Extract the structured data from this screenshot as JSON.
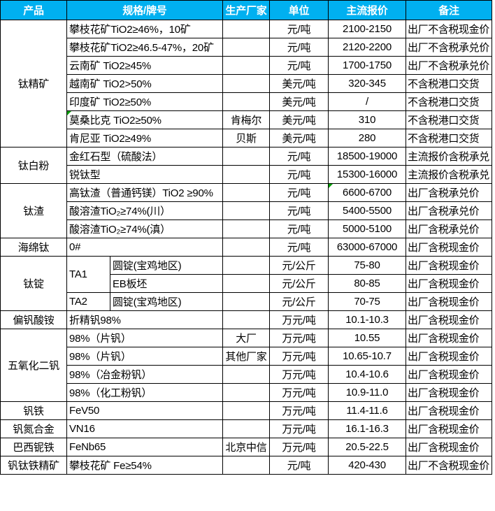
{
  "table": {
    "header": {
      "product": "产品",
      "spec": "规格/牌号",
      "maker": "生产厂家",
      "unit": "单位",
      "price": "主流报价",
      "note": "备注"
    },
    "header_bg": "#00B0F0",
    "header_fg": "#FFFFFF",
    "marker_color": "#00A000",
    "products": [
      {
        "name": "钛精矿",
        "rows": [
          {
            "spec": "攀枝花矿TiO2≥46%，10矿",
            "maker": "",
            "unit": "元/吨",
            "price": "2100-2150",
            "note": "出厂不含税现金价"
          },
          {
            "spec": "攀枝花矿TiO2≥46.5-47%，20矿",
            "maker": "",
            "unit": "元/吨",
            "price": "2120-2200",
            "note": "出厂不含税承兑价"
          },
          {
            "spec": "云南矿 TiO2≥45%",
            "maker": "",
            "unit": "元/吨",
            "price": "1700-1750",
            "note": "出厂不含税承兑价"
          },
          {
            "spec": "越南矿 TiO2>50%",
            "maker": "",
            "unit": "美元/吨",
            "price": "320-345",
            "note": "不含税港口交货"
          },
          {
            "spec": "印度矿 TiO2≥50%",
            "maker": "",
            "unit": "美元/吨",
            "price": "/",
            "note": "不含税港口交货"
          },
          {
            "spec": "莫桑比克 TiO2≥50%",
            "maker": "肯梅尔",
            "unit": "美元/吨",
            "price": "310",
            "note": "不含税港口交货",
            "marker": "spec"
          },
          {
            "spec": "肯尼亚 TiO2≥49%",
            "maker": "贝斯",
            "unit": "美元/吨",
            "price": "280",
            "note": "不含税港口交货"
          }
        ]
      },
      {
        "name": "钛白粉",
        "rows": [
          {
            "spec": "金红石型（硫酸法）",
            "maker": "",
            "unit": "元/吨",
            "price": "18500-19000",
            "note": "主流报价含税承兑"
          },
          {
            "spec": "锐钛型",
            "maker": "",
            "unit": "元/吨",
            "price": "15300-16000",
            "note": "主流报价含税承兑"
          }
        ]
      },
      {
        "name": "钛渣",
        "rows": [
          {
            "spec": "高钛渣（普通钙镁）TiO2 ≥90%",
            "maker": "",
            "unit": "元/吨",
            "price": "6600-6700",
            "note": "出厂含税承兑价",
            "marker": "price"
          },
          {
            "spec": "酸溶渣TiO₂≥74%(川）",
            "maker": "",
            "unit": "元/吨",
            "price": "5400-5500",
            "note": "出厂含税承兑价"
          },
          {
            "spec": "酸溶渣TiO₂≥74%(滇）",
            "maker": "",
            "unit": "元/吨",
            "price": "5000-5100",
            "note": "出厂含税承兑价"
          }
        ]
      },
      {
        "name": "海绵钛",
        "rows": [
          {
            "spec": "0#",
            "maker": "",
            "unit": "元/吨",
            "price": "63000-67000",
            "note": "出厂含税现金价"
          }
        ]
      },
      {
        "name": "钛锭",
        "rows": [
          {
            "grade": "TA1",
            "grade_rowspan": 2,
            "spec": "圆锭(宝鸡地区)",
            "maker": "",
            "unit": "元/公斤",
            "price": "75-80",
            "note": "出厂含税现金价"
          },
          {
            "spec": "EB板坯",
            "maker": "",
            "unit": "元/公斤",
            "price": "80-85",
            "note": "出厂含税现金价"
          },
          {
            "grade": "TA2",
            "grade_rowspan": 1,
            "spec": "圆锭(宝鸡地区)",
            "maker": "",
            "unit": "元/公斤",
            "price": "70-75",
            "note": "出厂含税现金价"
          }
        ]
      },
      {
        "name": "偏钒酸铵",
        "rows": [
          {
            "spec": "折精钒98%",
            "maker": "",
            "unit": "万元/吨",
            "price": "10.1-10.3",
            "note": "出厂含税现金价"
          }
        ]
      },
      {
        "name": "五氧化二钒",
        "rows": [
          {
            "spec": "98%（片钒）",
            "maker": "大厂",
            "unit": "万元/吨",
            "price": "10.55",
            "note": "出厂含税现金价"
          },
          {
            "spec": "98%（片钒）",
            "maker": "其他厂家",
            "unit": "万元/吨",
            "price": "10.65-10.7",
            "note": "出厂含税现金价"
          },
          {
            "spec": "98%（冶金粉钒）",
            "maker": "",
            "unit": "万元/吨",
            "price": "10.4-10.6",
            "note": "出厂含税现金价"
          },
          {
            "spec": "98%（化工粉钒）",
            "maker": "",
            "unit": "万元/吨",
            "price": "10.9-11.0",
            "note": "出厂含税现金价"
          }
        ]
      },
      {
        "name": "钒铁",
        "rows": [
          {
            "spec": "FeV50",
            "maker": "",
            "unit": "万元/吨",
            "price": "11.4-11.6",
            "note": "出厂含税现金价"
          }
        ]
      },
      {
        "name": "钒氮合金",
        "rows": [
          {
            "spec": "VN16",
            "maker": "",
            "unit": "万元/吨",
            "price": "16.1-16.3",
            "note": "出厂含税现金价"
          }
        ]
      },
      {
        "name": "巴西铌铁",
        "rows": [
          {
            "spec": "FeNb65",
            "maker": "北京中信",
            "unit": "万元/吨",
            "price": "20.5-22.5",
            "note": "出厂含税现金价"
          }
        ]
      },
      {
        "name": "钒钛铁精矿",
        "rows": [
          {
            "spec": "攀枝花矿 Fe≥54%",
            "maker": "",
            "unit": "元/吨",
            "price": "420-430",
            "note": "出厂不含税现金价"
          }
        ]
      }
    ]
  }
}
